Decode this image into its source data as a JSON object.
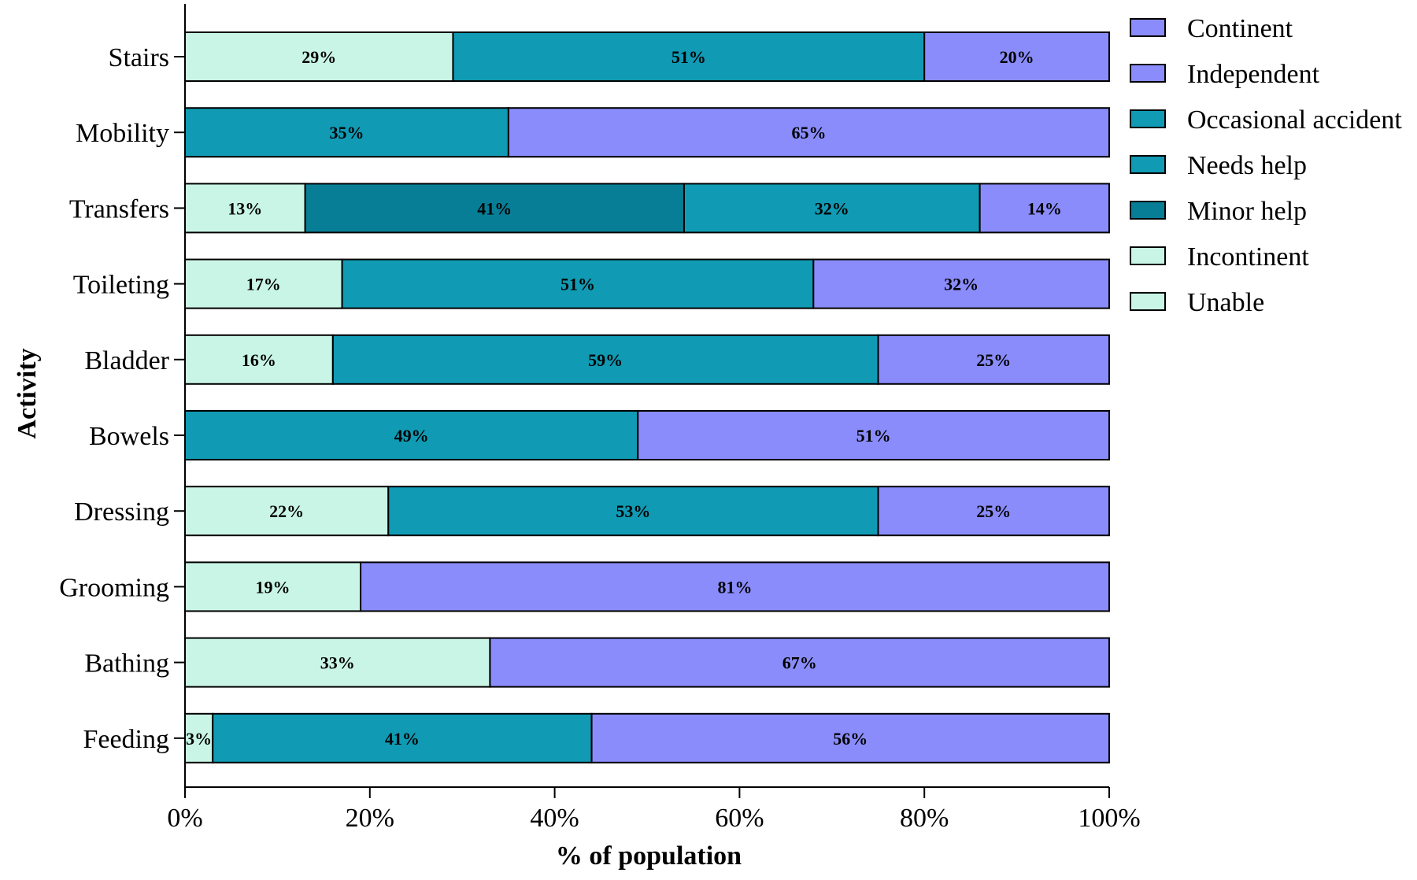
{
  "chart_data": {
    "type": "bar",
    "orientation": "horizontal",
    "stacked": true,
    "xlabel": "% of population",
    "ylabel": "Activity",
    "xlim": [
      0,
      100
    ],
    "xticks": [
      "0%",
      "20%",
      "40%",
      "60%",
      "80%",
      "100%"
    ],
    "categories": [
      "Stairs",
      "Mobility",
      "Transfers",
      "Toileting",
      "Bladder",
      "Bowels",
      "Dressing",
      "Grooming",
      "Bathing",
      "Feeding"
    ],
    "series": [
      {
        "name": "Unable",
        "color": "#c9f5e6",
        "values": [
          29,
          0,
          13,
          17,
          16,
          0,
          22,
          19,
          33,
          3
        ]
      },
      {
        "name": "Incontinent",
        "color": "#c9f5e6",
        "values": [
          0,
          0,
          0,
          0,
          0,
          0,
          0,
          0,
          0,
          0
        ]
      },
      {
        "name": "Minor help",
        "color": "#087e96",
        "values": [
          0,
          0,
          41,
          0,
          0,
          0,
          0,
          0,
          0,
          0
        ]
      },
      {
        "name": "Needs help",
        "color": "#109ab4",
        "values": [
          51,
          35,
          32,
          51,
          59,
          0,
          53,
          0,
          0,
          41
        ]
      },
      {
        "name": "Occasional accident",
        "color": "#109ab4",
        "values": [
          0,
          0,
          0,
          0,
          0,
          49,
          0,
          0,
          0,
          0
        ]
      },
      {
        "name": "Independent",
        "color": "#8a8cfb",
        "values": [
          20,
          65,
          14,
          32,
          25,
          0,
          25,
          81,
          67,
          56
        ]
      },
      {
        "name": "Continent",
        "color": "#8a8cfb",
        "values": [
          0,
          0,
          0,
          0,
          0,
          51,
          0,
          0,
          0,
          0
        ]
      }
    ],
    "legend": {
      "placement": "right",
      "items": [
        {
          "name": "Continent",
          "color": "#8a8cfb"
        },
        {
          "name": "Independent",
          "color": "#8a8cfb"
        },
        {
          "name": "Occasional accident",
          "color": "#109ab4"
        },
        {
          "name": "Needs help",
          "color": "#109ab4"
        },
        {
          "name": "Minor help",
          "color": "#087e96"
        },
        {
          "name": "Incontinent",
          "color": "#c9f5e6"
        },
        {
          "name": "Unable",
          "color": "#c9f5e6"
        }
      ]
    }
  }
}
